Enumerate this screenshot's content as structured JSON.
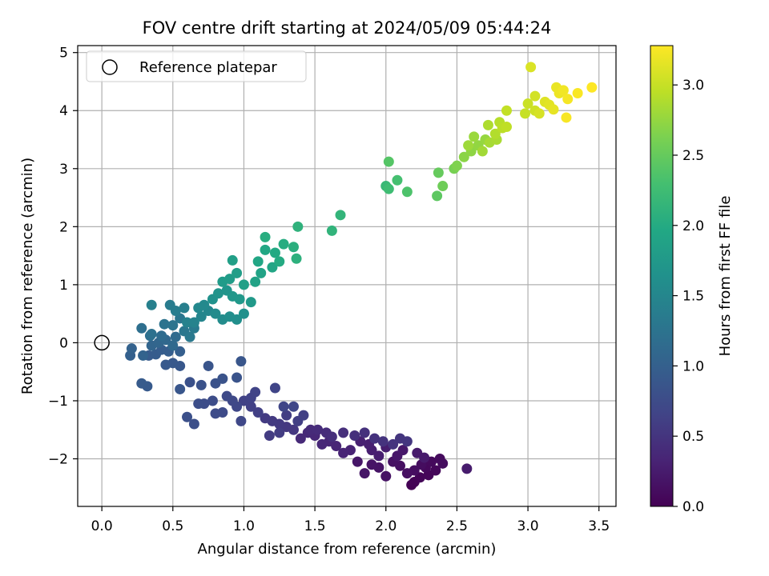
{
  "chart_data": {
    "type": "scatter",
    "title": "FOV centre drift starting at 2024/05/09 05:44:24",
    "xlabel": "Angular distance from reference (arcmin)",
    "ylabel": "Rotation from reference (arcmin)",
    "xlim": [
      -0.17,
      3.62
    ],
    "ylim": [
      -2.82,
      5.12
    ],
    "xticks": [
      "0.0",
      "0.5",
      "1.0",
      "1.5",
      "2.0",
      "2.5",
      "3.0",
      "3.5"
    ],
    "xtick_values": [
      0,
      0.5,
      1,
      1.5,
      2,
      2.5,
      3,
      3.5
    ],
    "yticks": [
      "−2",
      "−1",
      "0",
      "1",
      "2",
      "3",
      "4",
      "5"
    ],
    "ytick_values": [
      -2,
      -1,
      0,
      1,
      2,
      3,
      4,
      5
    ],
    "grid": true,
    "legend": {
      "location": "upper-left",
      "entries": [
        "Reference platepar"
      ]
    },
    "reference_point": {
      "x": 0,
      "y": 0
    },
    "colorbar": {
      "label": "Hours from first FF file",
      "range": [
        0,
        3.28
      ],
      "ticks": [
        "0.0",
        "0.5",
        "1.0",
        "1.5",
        "2.0",
        "2.5",
        "3.0"
      ],
      "tick_values": [
        0,
        0.5,
        1,
        1.5,
        2,
        2.5,
        3
      ],
      "colormap": "viridis"
    },
    "points_xyc": [
      [
        2.18,
        -2.45,
        0.0
      ],
      [
        2.2,
        -2.4,
        0.02
      ],
      [
        2.24,
        -2.32,
        0.04
      ],
      [
        2.3,
        -2.28,
        0.05
      ],
      [
        2.35,
        -2.2,
        0.06
      ],
      [
        2.28,
        -2.15,
        0.07
      ],
      [
        2.32,
        -2.05,
        0.08
      ],
      [
        2.38,
        -2.0,
        0.09
      ],
      [
        2.4,
        -2.08,
        0.1
      ],
      [
        2.25,
        -2.1,
        0.11
      ],
      [
        2.2,
        -2.2,
        0.12
      ],
      [
        2.15,
        -2.25,
        0.13
      ],
      [
        2.1,
        -2.12,
        0.14
      ],
      [
        2.05,
        -2.05,
        0.15
      ],
      [
        2.0,
        -2.3,
        0.16
      ],
      [
        1.95,
        -2.15,
        0.17
      ],
      [
        1.9,
        -2.1,
        0.18
      ],
      [
        1.85,
        -2.25,
        0.19
      ],
      [
        1.8,
        -2.05,
        0.2
      ],
      [
        2.08,
        -1.95,
        0.21
      ],
      [
        2.12,
        -1.85,
        0.22
      ],
      [
        2.22,
        -1.9,
        0.23
      ],
      [
        2.27,
        -1.98,
        0.24
      ],
      [
        2.57,
        -2.17,
        0.25
      ],
      [
        2.0,
        -1.8,
        0.26
      ],
      [
        1.95,
        -1.95,
        0.27
      ],
      [
        1.9,
        -1.85,
        0.28
      ],
      [
        1.88,
        -1.75,
        0.29
      ],
      [
        1.82,
        -1.7,
        0.3
      ],
      [
        1.75,
        -1.85,
        0.32
      ],
      [
        1.7,
        -1.9,
        0.33
      ],
      [
        1.65,
        -1.78,
        0.34
      ],
      [
        1.6,
        -1.7,
        0.35
      ],
      [
        1.55,
        -1.75,
        0.36
      ],
      [
        1.5,
        -1.6,
        0.37
      ],
      [
        1.45,
        -1.55,
        0.38
      ],
      [
        1.4,
        -1.65,
        0.39
      ],
      [
        1.47,
        -1.5,
        0.4
      ],
      [
        1.52,
        -1.5,
        0.41
      ],
      [
        1.58,
        -1.55,
        0.42
      ],
      [
        1.62,
        -1.62,
        0.43
      ],
      [
        1.7,
        -1.55,
        0.44
      ],
      [
        1.78,
        -1.6,
        0.45
      ],
      [
        1.85,
        -1.55,
        0.46
      ],
      [
        1.92,
        -1.65,
        0.47
      ],
      [
        1.98,
        -1.7,
        0.48
      ],
      [
        2.05,
        -1.75,
        0.49
      ],
      [
        2.1,
        -1.65,
        0.5
      ],
      [
        2.15,
        -1.7,
        0.51
      ],
      [
        1.35,
        -1.5,
        0.52
      ],
      [
        1.3,
        -1.45,
        0.53
      ],
      [
        1.25,
        -1.4,
        0.54
      ],
      [
        1.2,
        -1.35,
        0.55
      ],
      [
        1.15,
        -1.3,
        0.56
      ],
      [
        1.18,
        -1.6,
        0.57
      ],
      [
        1.25,
        -1.55,
        0.58
      ],
      [
        1.3,
        -1.25,
        0.59
      ],
      [
        1.38,
        -1.35,
        0.6
      ],
      [
        1.42,
        -1.25,
        0.61
      ],
      [
        1.1,
        -1.2,
        0.62
      ],
      [
        1.05,
        -1.1,
        0.63
      ],
      [
        1.0,
        -1.0,
        0.64
      ],
      [
        1.05,
        -0.95,
        0.65
      ],
      [
        1.08,
        -0.85,
        0.66
      ],
      [
        1.22,
        -0.78,
        0.67
      ],
      [
        1.28,
        -1.1,
        0.68
      ],
      [
        1.35,
        -1.1,
        0.69
      ],
      [
        0.98,
        -1.35,
        0.7
      ],
      [
        0.95,
        -1.1,
        0.71
      ],
      [
        0.92,
        -1.0,
        0.72
      ],
      [
        0.88,
        -0.92,
        0.73
      ],
      [
        0.85,
        -1.2,
        0.74
      ],
      [
        0.8,
        -1.22,
        0.75
      ],
      [
        0.78,
        -1.0,
        0.76
      ],
      [
        0.72,
        -1.05,
        0.77
      ],
      [
        0.68,
        -1.05,
        0.78
      ],
      [
        0.65,
        -1.4,
        0.79
      ],
      [
        0.6,
        -1.28,
        0.8
      ],
      [
        0.62,
        -0.68,
        0.81
      ],
      [
        0.7,
        -0.73,
        0.82
      ],
      [
        0.8,
        -0.7,
        0.83
      ],
      [
        0.85,
        -0.62,
        0.84
      ],
      [
        0.95,
        -0.6,
        0.85
      ],
      [
        0.75,
        -0.4,
        0.86
      ],
      [
        0.98,
        -0.32,
        0.87
      ],
      [
        0.55,
        -0.8,
        0.88
      ],
      [
        0.55,
        -0.4,
        0.89
      ],
      [
        0.5,
        -0.35,
        0.9
      ],
      [
        0.45,
        -0.38,
        0.91
      ],
      [
        0.32,
        -0.75,
        0.92
      ],
      [
        0.28,
        -0.7,
        0.93
      ],
      [
        0.33,
        -0.22,
        0.94
      ],
      [
        0.38,
        -0.2,
        0.95
      ],
      [
        0.42,
        -0.12,
        0.96
      ],
      [
        0.47,
        -0.15,
        0.97
      ],
      [
        0.55,
        -0.15,
        0.98
      ],
      [
        0.2,
        -0.22,
        1.0
      ],
      [
        0.21,
        -0.1,
        1.02
      ],
      [
        0.29,
        -0.22,
        1.04
      ],
      [
        0.35,
        -0.05,
        1.06
      ],
      [
        0.4,
        0.0,
        1.08
      ],
      [
        0.45,
        0.05,
        1.1
      ],
      [
        0.5,
        -0.05,
        1.12
      ],
      [
        0.52,
        0.1,
        1.14
      ],
      [
        0.42,
        0.12,
        1.16
      ],
      [
        0.34,
        0.12,
        1.18
      ],
      [
        0.28,
        0.25,
        1.2
      ],
      [
        0.35,
        0.15,
        1.22
      ],
      [
        0.44,
        0.32,
        1.24
      ],
      [
        0.5,
        0.3,
        1.26
      ],
      [
        0.55,
        0.42,
        1.28
      ],
      [
        0.58,
        0.2,
        1.3
      ],
      [
        0.62,
        0.1,
        1.32
      ],
      [
        0.65,
        0.25,
        1.34
      ],
      [
        0.48,
        0.65,
        1.36
      ],
      [
        0.52,
        0.55,
        1.38
      ],
      [
        0.58,
        0.6,
        1.4
      ],
      [
        0.35,
        0.65,
        1.42
      ],
      [
        0.6,
        0.35,
        1.44
      ],
      [
        0.65,
        0.35,
        1.46
      ],
      [
        0.7,
        0.45,
        1.48
      ],
      [
        0.75,
        0.55,
        1.5
      ],
      [
        0.68,
        0.6,
        1.52
      ],
      [
        0.72,
        0.65,
        1.54
      ],
      [
        0.8,
        0.5,
        1.56
      ],
      [
        0.85,
        0.4,
        1.58
      ],
      [
        0.9,
        0.45,
        1.6
      ],
      [
        0.95,
        0.4,
        1.62
      ],
      [
        1.0,
        0.5,
        1.64
      ],
      [
        0.78,
        0.75,
        1.66
      ],
      [
        0.82,
        0.85,
        1.68
      ],
      [
        0.88,
        0.9,
        1.7
      ],
      [
        0.92,
        0.8,
        1.72
      ],
      [
        0.97,
        0.75,
        1.74
      ],
      [
        1.05,
        0.7,
        1.76
      ],
      [
        0.85,
        1.05,
        1.78
      ],
      [
        0.9,
        1.1,
        1.8
      ],
      [
        0.95,
        1.2,
        1.82
      ],
      [
        0.92,
        1.42,
        1.84
      ],
      [
        1.0,
        1.0,
        1.86
      ],
      [
        1.08,
        1.05,
        1.88
      ],
      [
        1.12,
        1.2,
        1.9
      ],
      [
        1.2,
        1.3,
        1.92
      ],
      [
        1.1,
        1.4,
        1.94
      ],
      [
        1.15,
        1.6,
        1.96
      ],
      [
        1.22,
        1.55,
        1.98
      ],
      [
        1.25,
        1.4,
        2.0
      ],
      [
        1.28,
        1.7,
        2.02
      ],
      [
        1.15,
        1.82,
        2.04
      ],
      [
        1.35,
        1.65,
        2.06
      ],
      [
        1.37,
        1.45,
        2.08
      ],
      [
        1.38,
        2.0,
        2.1
      ],
      [
        1.62,
        1.93,
        2.12
      ],
      [
        1.68,
        2.2,
        2.14
      ],
      [
        2.0,
        2.7,
        2.2
      ],
      [
        2.02,
        2.65,
        2.25
      ],
      [
        2.08,
        2.8,
        2.3
      ],
      [
        2.15,
        2.6,
        2.35
      ],
      [
        2.02,
        3.12,
        2.4
      ],
      [
        2.36,
        2.53,
        2.45
      ],
      [
        2.37,
        2.93,
        2.5
      ],
      [
        2.4,
        2.7,
        2.55
      ],
      [
        2.48,
        3.0,
        2.6
      ],
      [
        2.5,
        3.05,
        2.65
      ],
      [
        2.55,
        3.2,
        2.7
      ],
      [
        2.6,
        3.3,
        2.72
      ],
      [
        2.65,
        3.4,
        2.74
      ],
      [
        2.7,
        3.5,
        2.76
      ],
      [
        2.62,
        3.55,
        2.78
      ],
      [
        2.58,
        3.4,
        2.8
      ],
      [
        2.68,
        3.3,
        2.82
      ],
      [
        2.73,
        3.45,
        2.84
      ],
      [
        2.78,
        3.5,
        2.86
      ],
      [
        2.72,
        3.75,
        2.88
      ],
      [
        2.77,
        3.6,
        2.9
      ],
      [
        2.8,
        3.8,
        2.92
      ],
      [
        2.82,
        3.7,
        2.94
      ],
      [
        2.85,
        3.72,
        2.96
      ],
      [
        2.85,
        4.0,
        2.98
      ],
      [
        2.98,
        3.95,
        3.0
      ],
      [
        3.0,
        4.12,
        3.02
      ],
      [
        3.05,
        4.0,
        3.04
      ],
      [
        3.05,
        4.25,
        3.06
      ],
      [
        3.08,
        3.95,
        3.08
      ],
      [
        3.02,
        4.75,
        3.1
      ],
      [
        3.12,
        4.15,
        3.12
      ],
      [
        3.15,
        4.1,
        3.14
      ],
      [
        3.18,
        4.02,
        3.16
      ],
      [
        3.2,
        4.4,
        3.18
      ],
      [
        3.22,
        4.3,
        3.2
      ],
      [
        3.25,
        4.35,
        3.22
      ],
      [
        3.28,
        4.2,
        3.24
      ],
      [
        3.27,
        3.88,
        3.25
      ],
      [
        3.35,
        4.3,
        3.26
      ],
      [
        3.45,
        4.4,
        3.28
      ]
    ]
  }
}
